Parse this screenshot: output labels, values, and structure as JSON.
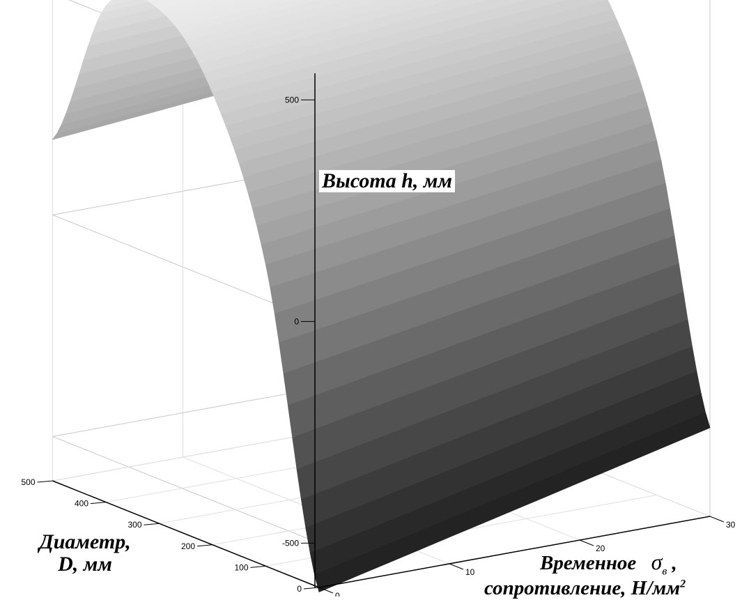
{
  "chart_data": {
    "type": "surface",
    "title": "",
    "zlabel": "Высота  h, мм",
    "ylabel_line1": "Диаметр,",
    "ylabel_line2": "D, мм",
    "xlabel_line1": "Временное",
    "xlabel_symbol": "σ",
    "xlabel_symbol_sub": "в",
    "xlabel_symbol_comma": " ,",
    "xlabel_line2": "сопротивление, Н/мм",
    "xlabel_line2_sup": "2",
    "x_axis": {
      "label": "σв, Н/мм²",
      "ticks": [
        0,
        10,
        20,
        30
      ],
      "range": [
        0,
        30
      ]
    },
    "y_axis": {
      "label": "D, мм",
      "ticks": [
        0,
        100,
        200,
        300,
        400,
        500
      ],
      "range": [
        0,
        500
      ]
    },
    "z_axis": {
      "label": "h, мм",
      "ticks": [
        -500,
        0,
        500
      ],
      "range": [
        -600,
        700
      ]
    },
    "grid": true,
    "colormap": "grayscale",
    "surface_profile": {
      "description_free": true,
      "D": [
        0,
        100,
        200,
        300,
        400,
        500
      ],
      "h_at_sigma_0": [
        -610,
        80,
        420,
        560,
        520,
        170
      ],
      "h_at_sigma_30": [
        -400,
        200,
        490,
        610,
        560,
        250
      ]
    }
  }
}
